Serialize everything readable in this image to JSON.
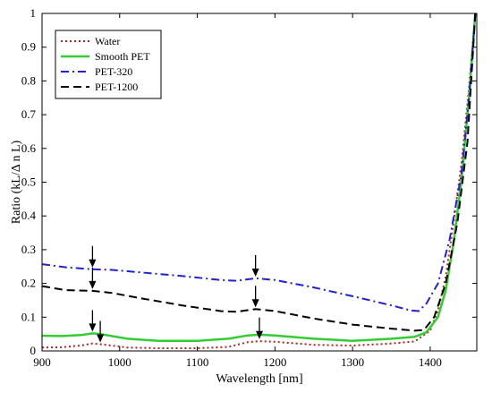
{
  "chart_data": {
    "type": "line",
    "xlabel": "Wavelength [nm]",
    "ylabel": "Ratio (kL/Δ n L)",
    "xlim": [
      900,
      1460
    ],
    "ylim": [
      0,
      1
    ],
    "xticks": [
      "900",
      "1000",
      "1100",
      "1200",
      "1300",
      "1400"
    ],
    "yticks": [
      "0",
      "0.1",
      "0.2",
      "0.3",
      "0.4",
      "0.5",
      "0.6",
      "0.7",
      "0.8",
      "0.9",
      "1"
    ],
    "grid": false,
    "legend_position": "top-left",
    "series": [
      {
        "name": "Water",
        "color": "#b22222",
        "style": "dotted",
        "x": [
          900,
          925,
          950,
          965,
          975,
          990,
          1010,
          1050,
          1100,
          1140,
          1165,
          1180,
          1200,
          1250,
          1300,
          1350,
          1380,
          1400,
          1410,
          1420,
          1430,
          1440,
          1450,
          1458
        ],
        "y": [
          0.01,
          0.011,
          0.016,
          0.022,
          0.02,
          0.016,
          0.01,
          0.008,
          0.008,
          0.012,
          0.026,
          0.029,
          0.027,
          0.018,
          0.016,
          0.022,
          0.028,
          0.06,
          0.12,
          0.22,
          0.38,
          0.55,
          0.78,
          1.0
        ]
      },
      {
        "name": "Smooth PET",
        "color": "#33cc33",
        "style": "solid",
        "x": [
          900,
          925,
          950,
          965,
          975,
          990,
          1010,
          1050,
          1100,
          1140,
          1165,
          1180,
          1200,
          1250,
          1300,
          1350,
          1380,
          1395,
          1410,
          1420,
          1430,
          1440,
          1450,
          1458
        ],
        "y": [
          0.045,
          0.044,
          0.047,
          0.052,
          0.05,
          0.044,
          0.036,
          0.03,
          0.03,
          0.036,
          0.046,
          0.048,
          0.046,
          0.036,
          0.03,
          0.036,
          0.042,
          0.055,
          0.1,
          0.18,
          0.32,
          0.5,
          0.75,
          1.0
        ]
      },
      {
        "name": "PET-320",
        "color": "#2222cc",
        "style": "dashdot",
        "x": [
          900,
          930,
          965,
          990,
          1030,
          1080,
          1130,
          1150,
          1175,
          1200,
          1250,
          1300,
          1350,
          1375,
          1385,
          1395,
          1410,
          1425,
          1440,
          1450,
          1458
        ],
        "y": [
          0.257,
          0.248,
          0.242,
          0.24,
          0.232,
          0.222,
          0.21,
          0.208,
          0.215,
          0.21,
          0.188,
          0.162,
          0.135,
          0.12,
          0.118,
          0.14,
          0.2,
          0.33,
          0.52,
          0.75,
          1.0
        ]
      },
      {
        "name": "PET-1200",
        "color": "#000000",
        "style": "dashed",
        "x": [
          900,
          930,
          965,
          990,
          1030,
          1080,
          1130,
          1150,
          1175,
          1200,
          1250,
          1300,
          1350,
          1380,
          1392,
          1405,
          1420,
          1435,
          1448,
          1458
        ],
        "y": [
          0.192,
          0.18,
          0.178,
          0.172,
          0.155,
          0.135,
          0.118,
          0.116,
          0.124,
          0.118,
          0.096,
          0.078,
          0.066,
          0.06,
          0.062,
          0.1,
          0.2,
          0.38,
          0.62,
          1.0
        ]
      }
    ],
    "annotations": [
      {
        "type": "arrow",
        "x": 965,
        "y": 0.242
      },
      {
        "type": "arrow",
        "x": 965,
        "y": 0.178
      },
      {
        "type": "arrow",
        "x": 965,
        "y": 0.052
      },
      {
        "type": "arrow",
        "x": 975,
        "y": 0.02
      },
      {
        "type": "arrow",
        "x": 1175,
        "y": 0.215
      },
      {
        "type": "arrow",
        "x": 1175,
        "y": 0.124
      },
      {
        "type": "arrow",
        "x": 1180,
        "y": 0.03
      }
    ]
  }
}
